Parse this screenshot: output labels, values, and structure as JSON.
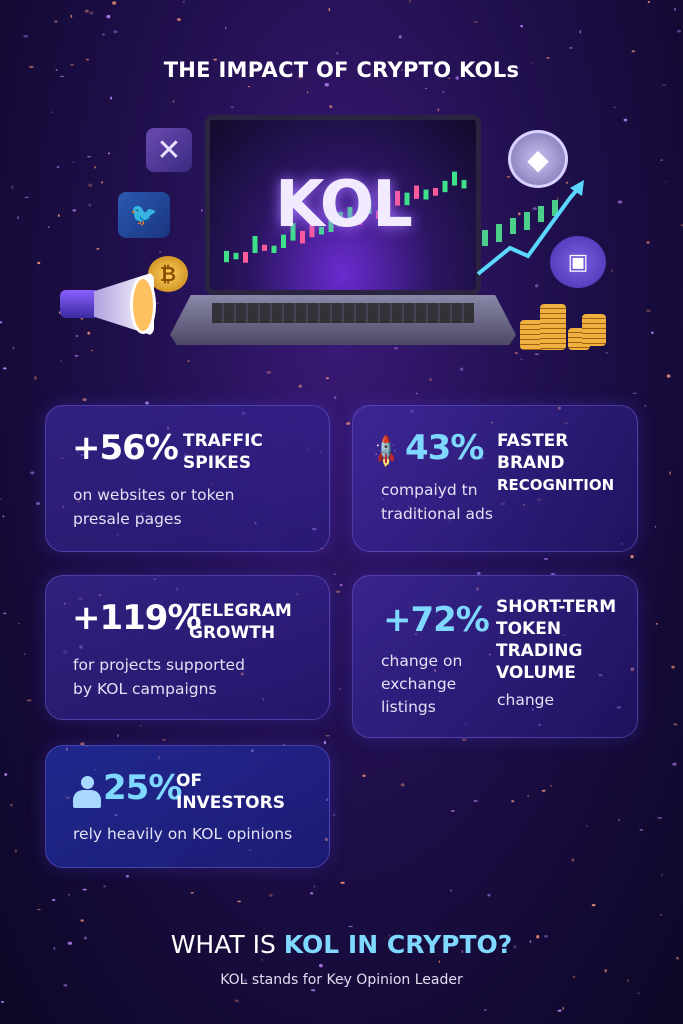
{
  "title": "THE IMPACT OF CRYPTO KOLs",
  "hero": {
    "screen_text": "KOL",
    "icons": [
      "x-logo-icon",
      "twitter-bird-icon",
      "bitcoin-coin-icon",
      "megaphone-icon",
      "ethereum-coin-icon",
      "discord-icon",
      "coin-stacks-icon",
      "rising-arrow-icon"
    ]
  },
  "stats": [
    {
      "value": "+56%",
      "heading": [
        "TRAFFIC",
        "SPIKES"
      ],
      "description": [
        "on websites or token",
        "presale pages"
      ]
    },
    {
      "icon": "rocket-icon",
      "value": "43%",
      "heading": [
        "FASTER",
        "BRAND",
        "RECOGNITION"
      ],
      "description": [
        "compaiyd tn",
        "traditional ads"
      ]
    },
    {
      "value": "+119%",
      "heading": [
        "TELEGRAM",
        "GROWTH"
      ],
      "description": [
        "for projects supported",
        "by KOL campaigns"
      ]
    },
    {
      "value": "+72%",
      "heading": [
        "SHORT-TERM",
        "TOKEN",
        "TRADING",
        "VOLUME"
      ],
      "description": [
        "change on",
        "exchange",
        "listings"
      ],
      "extra": "change"
    },
    {
      "icon": "person-icon",
      "value": "25%",
      "heading": [
        "OF",
        "INVESTORS"
      ],
      "description": [
        "rely heavily on KOL opinions"
      ]
    }
  ],
  "footer": {
    "heading_plain": "WHAT IS",
    "heading_accent": "KOL IN CRYPTO?",
    "subtitle": "KOL stands for Key Opinion Leader"
  },
  "colors": {
    "accent": "#7fd8ff",
    "background": "#1c0e44"
  }
}
